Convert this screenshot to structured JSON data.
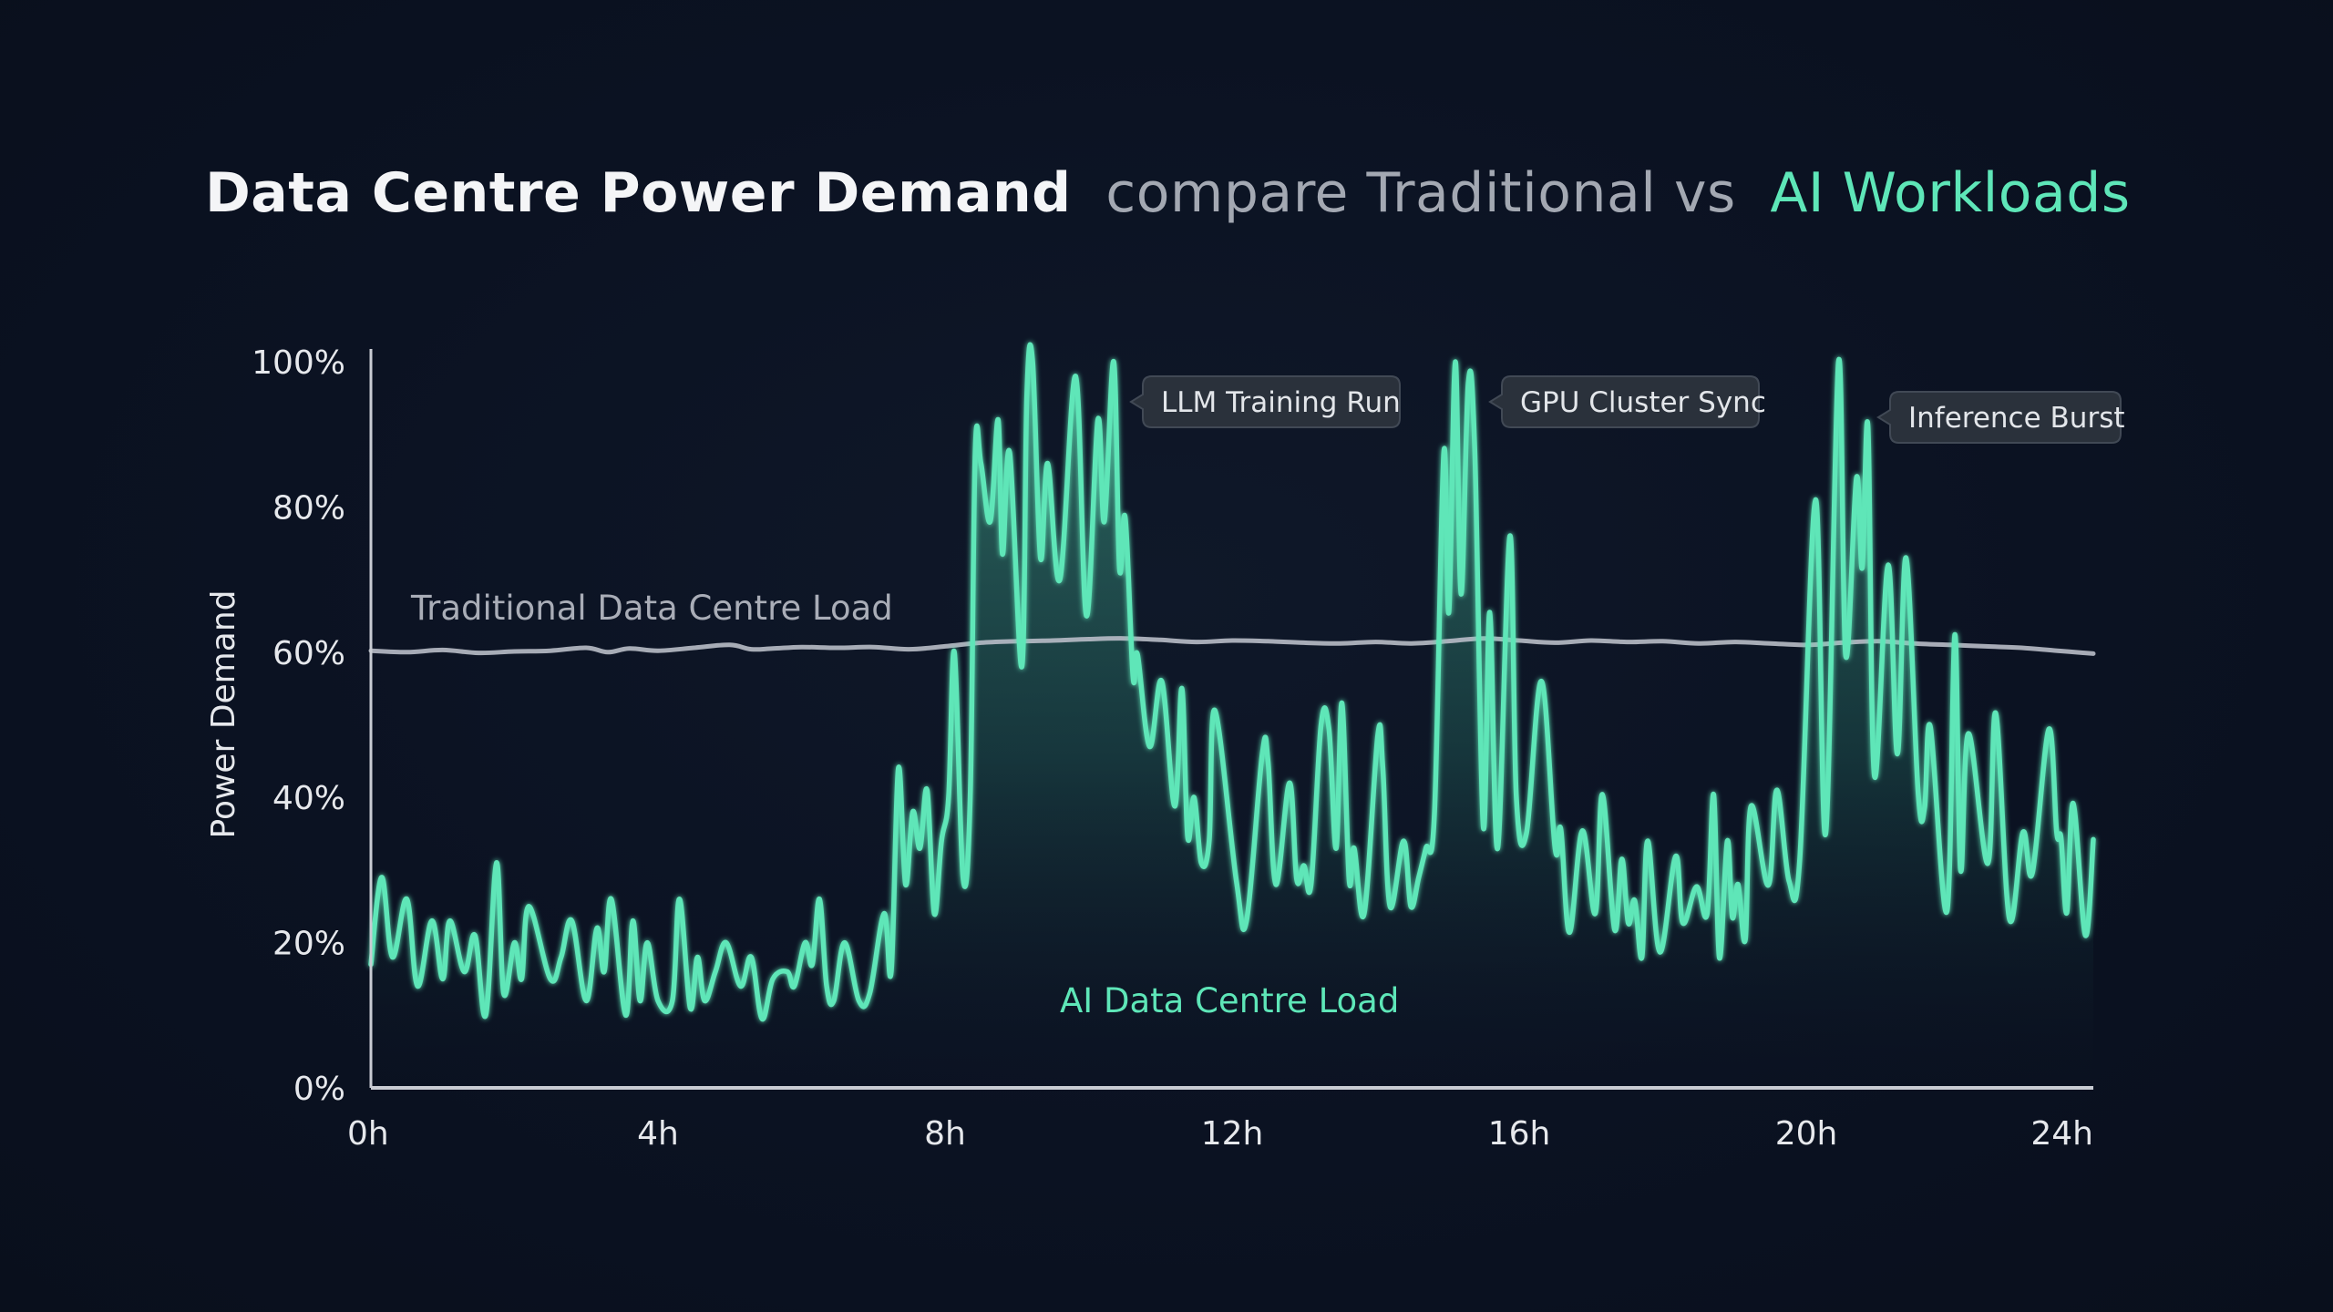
{
  "title": {
    "main": "Data Centre Power Demand",
    "connector": "compare Traditional vs",
    "highlight": "AI Workloads"
  },
  "colors": {
    "background": "#0b1120",
    "title_main": "#f4f5f7",
    "title_connector": "#a3a8b2",
    "ai_accent": "#5ee6b8",
    "traditional": "#b8bcc6",
    "axis": "#c9ccd3",
    "callout_bg": "#2a313b",
    "callout_border": "#414955"
  },
  "chart_data": {
    "type": "area",
    "title": "Data Centre Power Demand compare Traditional vs AI Workloads",
    "xlabel": "",
    "ylabel": "Power Demand",
    "xlim": [
      0,
      24
    ],
    "ylim": [
      0,
      100
    ],
    "grid": false,
    "x_ticks": [
      0,
      4,
      8,
      12,
      16,
      20,
      24
    ],
    "x_tick_labels": [
      "0h",
      "4h",
      "8h",
      "12h",
      "16h",
      "20h",
      "24h"
    ],
    "y_ticks": [
      0,
      20,
      40,
      60,
      80,
      100
    ],
    "y_tick_labels": [
      "0%",
      "20%",
      "40%",
      "60%",
      "80%",
      "100%"
    ],
    "series": [
      {
        "name": "Traditional Data Centre Load",
        "type": "line",
        "points": [
          [
            0,
            60.2
          ],
          [
            0.5,
            60.0
          ],
          [
            1.0,
            60.3
          ],
          [
            1.5,
            59.9
          ],
          [
            2.0,
            60.1
          ],
          [
            2.5,
            60.2
          ],
          [
            3.0,
            60.6
          ],
          [
            3.3,
            60.0
          ],
          [
            3.6,
            60.5
          ],
          [
            4.0,
            60.2
          ],
          [
            4.5,
            60.6
          ],
          [
            5.0,
            61.0
          ],
          [
            5.3,
            60.4
          ],
          [
            5.6,
            60.5
          ],
          [
            6.0,
            60.7
          ],
          [
            6.5,
            60.6
          ],
          [
            7.0,
            60.7
          ],
          [
            7.5,
            60.4
          ],
          [
            8.0,
            60.8
          ],
          [
            8.5,
            61.3
          ],
          [
            9.0,
            61.5
          ],
          [
            9.5,
            61.6
          ],
          [
            10.0,
            61.8
          ],
          [
            10.5,
            61.9
          ],
          [
            11.0,
            61.7
          ],
          [
            11.5,
            61.4
          ],
          [
            12.0,
            61.6
          ],
          [
            12.5,
            61.5
          ],
          [
            13.0,
            61.3
          ],
          [
            13.5,
            61.2
          ],
          [
            14.0,
            61.4
          ],
          [
            14.5,
            61.2
          ],
          [
            15.0,
            61.5
          ],
          [
            15.5,
            61.9
          ],
          [
            16.0,
            61.6
          ],
          [
            16.5,
            61.3
          ],
          [
            17.0,
            61.6
          ],
          [
            17.5,
            61.4
          ],
          [
            18.0,
            61.5
          ],
          [
            18.5,
            61.2
          ],
          [
            19.0,
            61.4
          ],
          [
            19.5,
            61.2
          ],
          [
            20.0,
            61.0
          ],
          [
            20.5,
            61.3
          ],
          [
            21.0,
            61.5
          ],
          [
            21.5,
            61.2
          ],
          [
            22.0,
            61.0
          ],
          [
            22.5,
            60.8
          ],
          [
            23.0,
            60.6
          ],
          [
            23.5,
            60.2
          ],
          [
            24.0,
            59.8
          ]
        ]
      },
      {
        "name": "AI Data Centre Load",
        "type": "area",
        "points": [
          [
            0.0,
            17
          ],
          [
            0.15,
            29
          ],
          [
            0.3,
            18
          ],
          [
            0.5,
            26
          ],
          [
            0.65,
            14
          ],
          [
            0.85,
            23
          ],
          [
            1.0,
            15
          ],
          [
            1.1,
            23
          ],
          [
            1.3,
            16
          ],
          [
            1.45,
            21
          ],
          [
            1.6,
            10
          ],
          [
            1.75,
            31
          ],
          [
            1.85,
            13
          ],
          [
            2.0,
            20
          ],
          [
            2.1,
            15
          ],
          [
            2.2,
            25
          ],
          [
            2.5,
            15
          ],
          [
            2.65,
            18
          ],
          [
            2.8,
            23
          ],
          [
            3.0,
            12
          ],
          [
            3.15,
            22
          ],
          [
            3.25,
            16
          ],
          [
            3.35,
            26
          ],
          [
            3.55,
            10
          ],
          [
            3.65,
            23
          ],
          [
            3.75,
            12
          ],
          [
            3.85,
            20
          ],
          [
            4.0,
            12
          ],
          [
            4.2,
            12
          ],
          [
            4.3,
            26
          ],
          [
            4.45,
            11
          ],
          [
            4.55,
            18
          ],
          [
            4.65,
            12
          ],
          [
            4.8,
            16
          ],
          [
            4.95,
            20
          ],
          [
            5.15,
            14
          ],
          [
            5.3,
            18
          ],
          [
            5.45,
            9.5
          ],
          [
            5.6,
            15
          ],
          [
            5.8,
            16
          ],
          [
            5.9,
            14
          ],
          [
            6.05,
            20
          ],
          [
            6.15,
            17
          ],
          [
            6.25,
            26
          ],
          [
            6.35,
            14
          ],
          [
            6.45,
            12
          ],
          [
            6.6,
            20
          ],
          [
            6.8,
            12
          ],
          [
            6.95,
            13
          ],
          [
            7.15,
            24
          ],
          [
            7.25,
            16
          ],
          [
            7.35,
            44
          ],
          [
            7.45,
            28
          ],
          [
            7.55,
            38
          ],
          [
            7.65,
            33
          ],
          [
            7.75,
            41
          ],
          [
            7.85,
            24
          ],
          [
            7.95,
            34
          ],
          [
            8.05,
            40
          ],
          [
            8.13,
            60
          ],
          [
            8.25,
            29
          ],
          [
            8.35,
            40
          ],
          [
            8.42,
            87.5
          ],
          [
            8.5,
            86
          ],
          [
            8.63,
            78
          ],
          [
            8.74,
            92
          ],
          [
            8.8,
            73.5
          ],
          [
            8.9,
            87.5
          ],
          [
            9.07,
            58
          ],
          [
            9.14,
            95.5
          ],
          [
            9.22,
            100
          ],
          [
            9.33,
            73
          ],
          [
            9.43,
            86
          ],
          [
            9.6,
            70
          ],
          [
            9.82,
            98
          ],
          [
            9.97,
            65
          ],
          [
            10.13,
            92
          ],
          [
            10.22,
            78
          ],
          [
            10.35,
            100
          ],
          [
            10.43,
            71.6
          ],
          [
            10.51,
            78.5
          ],
          [
            10.62,
            56.6
          ],
          [
            10.68,
            59.7
          ],
          [
            10.85,
            47
          ],
          [
            11.02,
            56
          ],
          [
            11.2,
            38.8
          ],
          [
            11.3,
            55
          ],
          [
            11.38,
            34.6
          ],
          [
            11.47,
            40
          ],
          [
            11.57,
            31
          ],
          [
            11.68,
            34
          ],
          [
            11.76,
            52
          ],
          [
            12.06,
            28.5
          ],
          [
            12.2,
            23
          ],
          [
            12.42,
            46
          ],
          [
            12.5,
            45
          ],
          [
            12.61,
            28
          ],
          [
            12.8,
            42
          ],
          [
            12.9,
            28.7
          ],
          [
            13.0,
            30.6
          ],
          [
            13.1,
            28
          ],
          [
            13.24,
            50
          ],
          [
            13.35,
            49.4
          ],
          [
            13.45,
            33
          ],
          [
            13.53,
            53
          ],
          [
            13.63,
            28.7
          ],
          [
            13.7,
            33
          ],
          [
            13.84,
            24
          ],
          [
            14.03,
            48.6
          ],
          [
            14.1,
            44
          ],
          [
            14.2,
            25
          ],
          [
            14.39,
            34
          ],
          [
            14.49,
            25
          ],
          [
            14.6,
            29
          ],
          [
            14.7,
            33
          ],
          [
            14.82,
            38
          ],
          [
            14.95,
            87.5
          ],
          [
            15.02,
            65.5
          ],
          [
            15.11,
            100
          ],
          [
            15.19,
            68
          ],
          [
            15.29,
            97
          ],
          [
            15.38,
            88
          ],
          [
            15.5,
            36
          ],
          [
            15.59,
            65.5
          ],
          [
            15.7,
            33
          ],
          [
            15.87,
            76
          ],
          [
            15.96,
            40
          ],
          [
            16.1,
            35
          ],
          [
            16.31,
            56
          ],
          [
            16.5,
            33
          ],
          [
            16.58,
            35.6
          ],
          [
            16.7,
            21.4
          ],
          [
            16.88,
            35.4
          ],
          [
            17.06,
            24
          ],
          [
            17.16,
            40.4
          ],
          [
            17.33,
            21.8
          ],
          [
            17.43,
            31.5
          ],
          [
            17.52,
            22.7
          ],
          [
            17.61,
            25.8
          ],
          [
            17.71,
            18
          ],
          [
            17.79,
            34
          ],
          [
            17.96,
            18.7
          ],
          [
            18.18,
            31.9
          ],
          [
            18.28,
            22.7
          ],
          [
            18.47,
            27.7
          ],
          [
            18.62,
            24
          ],
          [
            18.71,
            40.4
          ],
          [
            18.79,
            17.9
          ],
          [
            18.9,
            34
          ],
          [
            18.97,
            23.5
          ],
          [
            19.05,
            28
          ],
          [
            19.15,
            20.4
          ],
          [
            19.23,
            38.8
          ],
          [
            19.47,
            27.9
          ],
          [
            19.59,
            41
          ],
          [
            19.76,
            28.5
          ],
          [
            19.91,
            31.5
          ],
          [
            20.13,
            81
          ],
          [
            20.27,
            35
          ],
          [
            20.45,
            100
          ],
          [
            20.55,
            59.5
          ],
          [
            20.7,
            84
          ],
          [
            20.78,
            71.6
          ],
          [
            20.86,
            91
          ],
          [
            20.95,
            43
          ],
          [
            21.14,
            72
          ],
          [
            21.27,
            46
          ],
          [
            21.39,
            73
          ],
          [
            21.56,
            40.6
          ],
          [
            21.65,
            38.6
          ],
          [
            21.73,
            49.7
          ],
          [
            21.96,
            24.3
          ],
          [
            22.07,
            62.4
          ],
          [
            22.15,
            30
          ],
          [
            22.26,
            48.8
          ],
          [
            22.53,
            30.9
          ],
          [
            22.64,
            51.6
          ],
          [
            22.83,
            23.3
          ],
          [
            23.02,
            35.2
          ],
          [
            23.15,
            29.6
          ],
          [
            23.38,
            49.4
          ],
          [
            23.49,
            35.2
          ],
          [
            23.55,
            34.4
          ],
          [
            23.63,
            24.1
          ],
          [
            23.72,
            39.2
          ],
          [
            23.89,
            21
          ],
          [
            24.0,
            34.2
          ]
        ]
      }
    ],
    "series_labels": {
      "traditional": "Traditional Data Centre Load",
      "ai": "AI Data Centre Load"
    },
    "annotations": [
      {
        "text": "LLM Training Run",
        "x": 10.35,
        "y": 100
      },
      {
        "text": "GPU Cluster Sync",
        "x": 15.29,
        "y": 97
      },
      {
        "text": "Inference Burst",
        "x": 20.86,
        "y": 91
      }
    ]
  }
}
